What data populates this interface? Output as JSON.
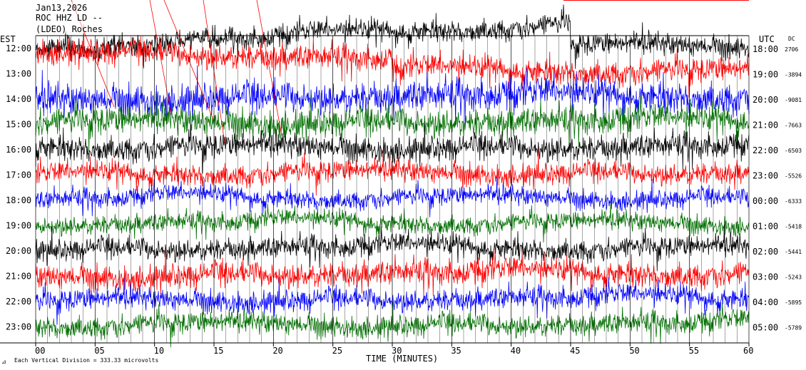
{
  "header": {
    "date": "Jan13,2026",
    "station": "ROC HHZ LD --",
    "network": "(LDEO) Roches",
    "left_zone": "EST",
    "right_zone": "UTC",
    "dc_label": "DC"
  },
  "footer": {
    "scale_note": "Each Vertical Division =  333.33 microvolts",
    "x_axis_title": "TIME (MINUTES)"
  },
  "chart_data": {
    "type": "line",
    "title": "Jan13,2026",
    "subtitle": "ROC HHZ LD -- (LDEO) Roches",
    "xlabel": "TIME (MINUTES)",
    "ylabel": "",
    "xlim": [
      0,
      60
    ],
    "x_ticks": [
      "00",
      "05",
      "10",
      "15",
      "20",
      "25",
      "30",
      "35",
      "40",
      "45",
      "50",
      "55",
      "60"
    ],
    "grid": true,
    "colors": [
      "#000000",
      "#ff0000",
      "#0000ff",
      "#007000"
    ],
    "rows": [
      {
        "est": "12:00",
        "utc": "18:00",
        "dc": "2706",
        "color": "#000000"
      },
      {
        "est": "13:00",
        "utc": "19:00",
        "dc": "-3894",
        "color": "#ff0000"
      },
      {
        "est": "14:00",
        "utc": "20:00",
        "dc": "-9081",
        "color": "#0000ff"
      },
      {
        "est": "15:00",
        "utc": "21:00",
        "dc": "-7663",
        "color": "#007000"
      },
      {
        "est": "16:00",
        "utc": "22:00",
        "dc": "-6503",
        "color": "#000000"
      },
      {
        "est": "17:00",
        "utc": "23:00",
        "dc": "-5526",
        "color": "#ff0000"
      },
      {
        "est": "18:00",
        "utc": "00:00",
        "dc": "-6333",
        "color": "#0000ff"
      },
      {
        "est": "19:00",
        "utc": "01:00",
        "dc": "-5418",
        "color": "#007000"
      },
      {
        "est": "20:00",
        "utc": "02:00",
        "dc": "-5441",
        "color": "#000000"
      },
      {
        "est": "21:00",
        "utc": "03:00",
        "dc": "-5243",
        "color": "#ff0000"
      },
      {
        "est": "22:00",
        "utc": "04:00",
        "dc": "-5895",
        "color": "#0000ff"
      },
      {
        "est": "23:00",
        "utc": "05:00",
        "dc": "-5789",
        "color": "#007000"
      }
    ]
  }
}
